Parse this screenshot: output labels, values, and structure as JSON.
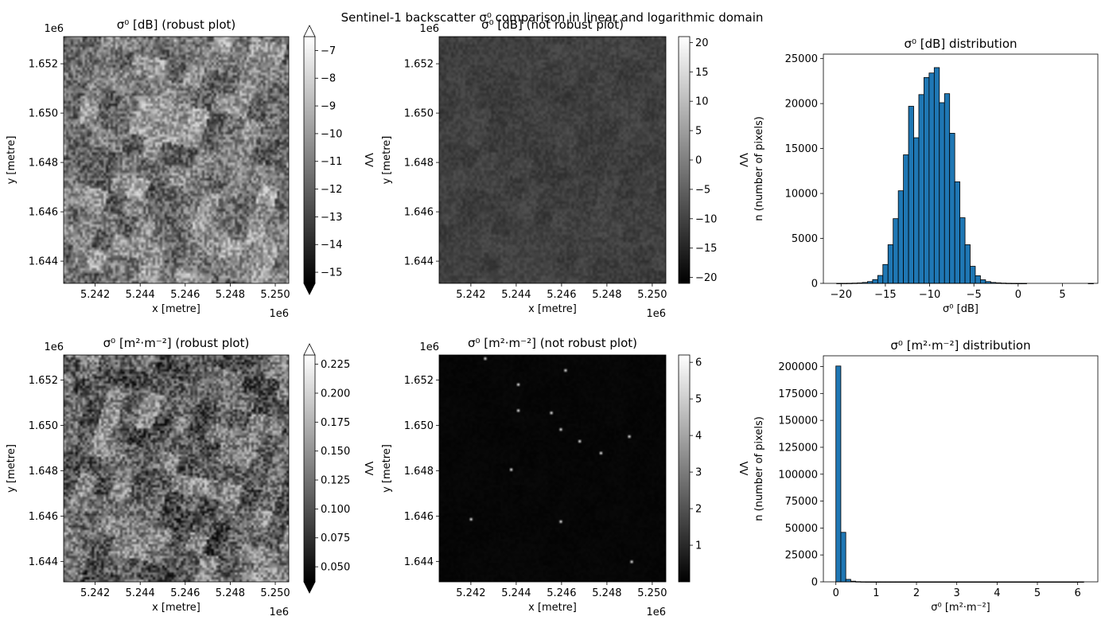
{
  "figure": {
    "suptitle": "Sentinel-1 backscatter σ⁰ comparison in linear and logarithmic domain"
  },
  "chart_data": [
    {
      "type": "heatmap",
      "title": "σ⁰ [dB] (robust plot)",
      "xlabel": "x [metre]",
      "ylabel": "y [metre]",
      "xlim": [
        5.2406,
        5.2506
      ],
      "ylim": [
        1.6431,
        1.6531
      ],
      "x_ticks": [
        5.242,
        5.244,
        5.246,
        5.248,
        5.25
      ],
      "x_tick_labels": [
        "5.242",
        "5.244",
        "5.246",
        "5.248",
        "5.250"
      ],
      "y_ticks": [
        1.644,
        1.646,
        1.648,
        1.65,
        1.652
      ],
      "y_tick_labels": [
        "1.644",
        "1.646",
        "1.648",
        "1.650",
        "1.652"
      ],
      "x_offset": "1e6",
      "y_offset": "1e6",
      "colorbar": {
        "label": "VV",
        "range": [
          -15.4,
          -6.5
        ],
        "ticks": [
          -15,
          -14,
          -13,
          -12,
          -11,
          -10,
          -9,
          -8,
          -7
        ],
        "tick_labels": [
          "−15",
          "−14",
          "−13",
          "−12",
          "−11",
          "−10",
          "−9",
          "−8",
          "−7"
        ],
        "extend": "both",
        "colormap": "gray"
      },
      "noise": {
        "seed": 11,
        "mean": 0.5,
        "spread": 0.45,
        "block": 0.35
      }
    },
    {
      "type": "heatmap",
      "title": "σ⁰ [dB] (not robust plot)",
      "xlabel": "x [metre]",
      "ylabel": "y [metre]",
      "xlim": [
        5.2406,
        5.2506
      ],
      "ylim": [
        1.6431,
        1.6531
      ],
      "x_ticks": [
        5.242,
        5.244,
        5.246,
        5.248,
        5.25
      ],
      "x_tick_labels": [
        "5.242",
        "5.244",
        "5.246",
        "5.248",
        "5.250"
      ],
      "y_ticks": [
        1.644,
        1.646,
        1.648,
        1.65,
        1.652
      ],
      "y_tick_labels": [
        "1.644",
        "1.646",
        "1.648",
        "1.650",
        "1.652"
      ],
      "x_offset": "1e6",
      "y_offset": "1e6",
      "colorbar": {
        "label": "VV",
        "range": [
          -21,
          21
        ],
        "ticks": [
          -20,
          -15,
          -10,
          -5,
          0,
          5,
          10,
          15,
          20
        ],
        "tick_labels": [
          "−20",
          "−15",
          "−10",
          "−5",
          "0",
          "5",
          "10",
          "15",
          "20"
        ],
        "extend": "neither",
        "colormap": "gray"
      },
      "noise": {
        "seed": 23,
        "mean": 0.25,
        "spread": 0.1,
        "block": 0.05
      }
    },
    {
      "type": "bar",
      "title": "σ⁰ [dB] distribution",
      "xlabel": "σ⁰ [dB]",
      "ylabel": "n (number of pixels)",
      "xlim": [
        -22,
        9
      ],
      "ylim": [
        0,
        25500
      ],
      "x_ticks": [
        -20,
        -15,
        -10,
        -5,
        0,
        5
      ],
      "x_tick_labels": [
        "−20",
        "−15",
        "−10",
        "−5",
        "0",
        "5"
      ],
      "y_ticks": [
        0,
        5000,
        10000,
        15000,
        20000,
        25000
      ],
      "y_tick_labels": [
        "0",
        "5000",
        "10000",
        "15000",
        "20000",
        "25000"
      ],
      "bin_start": -20.5,
      "bin_width": 0.58,
      "values": [
        5,
        10,
        15,
        30,
        50,
        100,
        200,
        420,
        880,
        2100,
        4300,
        7200,
        10300,
        14300,
        19700,
        16200,
        21000,
        22900,
        23400,
        24000,
        20100,
        21100,
        16700,
        11300,
        7300,
        4300,
        1900,
        850,
        400,
        200,
        100,
        60,
        30,
        15,
        10,
        5,
        5,
        0,
        0,
        0,
        0,
        0,
        0,
        0,
        0,
        0,
        0,
        0,
        0,
        2
      ]
    },
    {
      "type": "heatmap",
      "title": "σ⁰ [m²·m⁻²] (robust plot)",
      "xlabel": "x [metre]",
      "ylabel": "y [metre]",
      "xlim": [
        5.2406,
        5.2506
      ],
      "ylim": [
        1.6431,
        1.6531
      ],
      "x_ticks": [
        5.242,
        5.244,
        5.246,
        5.248,
        5.25
      ],
      "x_tick_labels": [
        "5.242",
        "5.244",
        "5.246",
        "5.248",
        "5.250"
      ],
      "y_ticks": [
        1.644,
        1.646,
        1.648,
        1.65,
        1.652
      ],
      "y_tick_labels": [
        "1.644",
        "1.646",
        "1.648",
        "1.650",
        "1.652"
      ],
      "x_offset": "1e6",
      "y_offset": "1e6",
      "colorbar": {
        "label": "VV",
        "range": [
          0.037,
          0.233
        ],
        "ticks": [
          0.05,
          0.075,
          0.1,
          0.125,
          0.15,
          0.175,
          0.2,
          0.225
        ],
        "tick_labels": [
          "0.050",
          "0.075",
          "0.100",
          "0.125",
          "0.150",
          "0.175",
          "0.200",
          "0.225"
        ],
        "extend": "both",
        "colormap": "gray"
      },
      "noise": {
        "seed": 37,
        "mean": 0.42,
        "spread": 0.5,
        "block": 0.35
      }
    },
    {
      "type": "heatmap",
      "title": "σ⁰ [m²·m⁻²] (not robust plot)",
      "xlabel": "x [metre]",
      "ylabel": "y [metre]",
      "xlim": [
        5.2406,
        5.2506
      ],
      "ylim": [
        1.6431,
        1.6531
      ],
      "x_ticks": [
        5.242,
        5.244,
        5.246,
        5.248,
        5.25
      ],
      "x_tick_labels": [
        "5.242",
        "5.244",
        "5.246",
        "5.248",
        "5.250"
      ],
      "y_ticks": [
        1.644,
        1.646,
        1.648,
        1.65,
        1.652
      ],
      "y_tick_labels": [
        "1.644",
        "1.646",
        "1.648",
        "1.650",
        "1.652"
      ],
      "x_offset": "1e6",
      "y_offset": "1e6",
      "colorbar": {
        "label": "VV",
        "range": [
          0.0,
          6.2
        ],
        "ticks": [
          1,
          2,
          3,
          4,
          5,
          6
        ],
        "tick_labels": [
          "1",
          "2",
          "3",
          "4",
          "5",
          "6"
        ],
        "extend": "neither",
        "colormap": "gray"
      },
      "noise": {
        "seed": 53,
        "mean": 0.025,
        "spread": 0.02,
        "block": 0.01
      }
    },
    {
      "type": "bar",
      "title": "σ⁰ [m²·m⁻²] distribution",
      "xlabel": "σ⁰ [m²·m⁻²]",
      "ylabel": "n (number of pixels)",
      "xlim": [
        -0.31,
        6.5
      ],
      "ylim": [
        0,
        210000
      ],
      "x_ticks": [
        0,
        1,
        2,
        3,
        4,
        5,
        6
      ],
      "x_tick_labels": [
        "0",
        "1",
        "2",
        "3",
        "4",
        "5",
        "6"
      ],
      "y_ticks": [
        0,
        25000,
        50000,
        75000,
        100000,
        125000,
        150000,
        175000,
        200000
      ],
      "y_tick_labels": [
        "0",
        "25000",
        "50000",
        "75000",
        "100000",
        "125000",
        "150000",
        "175000",
        "200000"
      ],
      "bin_start": 0.0,
      "bin_width": 0.123,
      "values": [
        200500,
        46000,
        2300,
        600,
        200,
        80,
        40,
        20,
        10,
        5,
        5,
        3,
        3,
        2,
        2,
        2,
        1,
        1,
        1,
        1,
        1,
        1,
        1,
        1,
        1,
        1,
        1,
        1,
        1,
        1,
        1,
        1,
        1,
        1,
        1,
        1,
        1,
        1,
        1,
        1,
        1,
        1,
        1,
        1,
        1,
        1,
        1,
        1,
        1,
        1
      ]
    }
  ]
}
